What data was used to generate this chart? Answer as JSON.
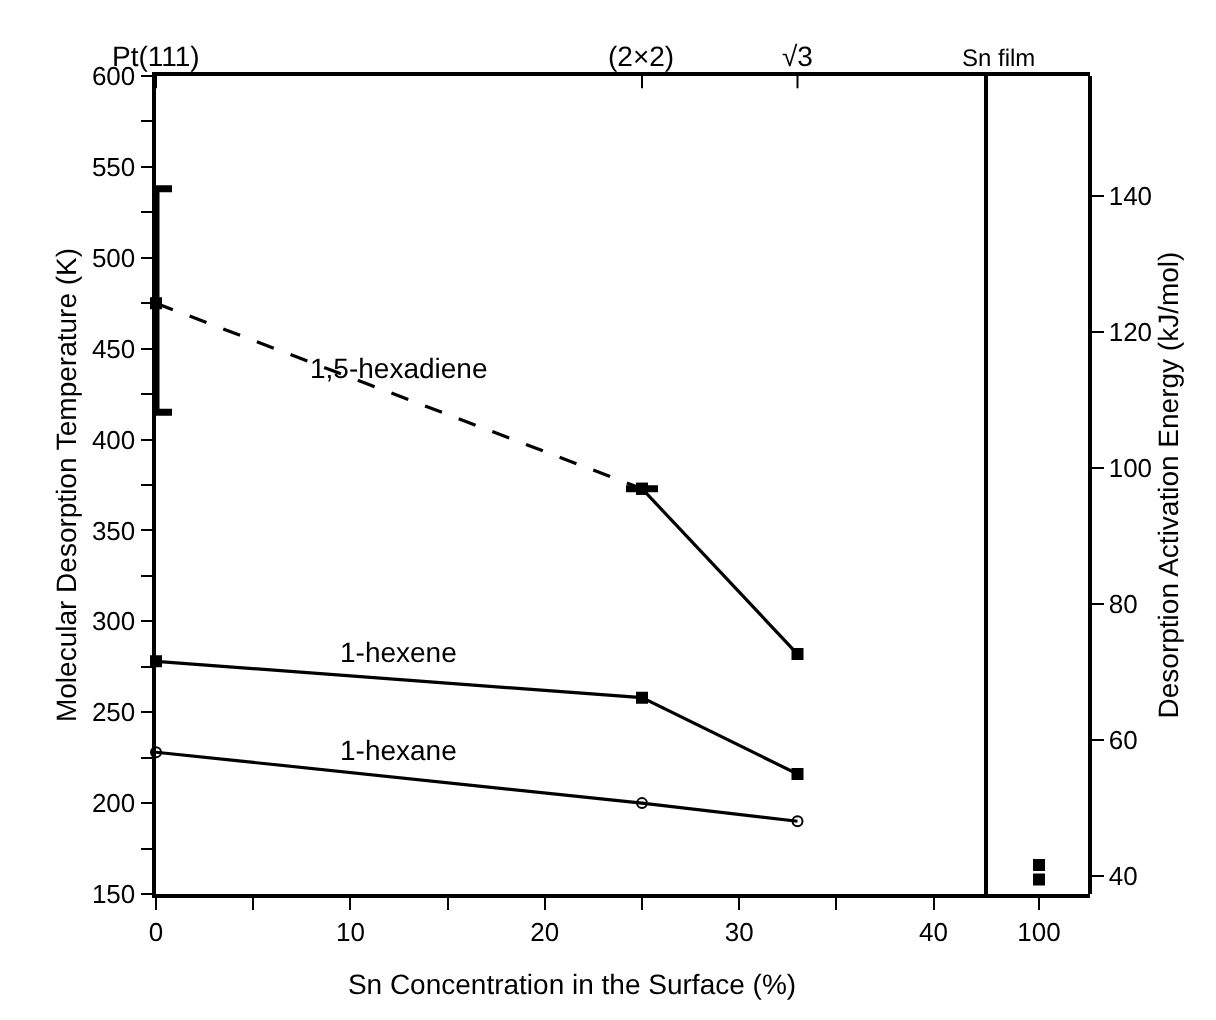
{
  "chart_data": [
    {
      "type": "line",
      "xlabel": "Sn Concentration in the Surface (%)",
      "ylabel": "Molecular Desorption Temperature (K)",
      "xlim": [
        0,
        42.8
      ],
      "xticks": [
        0,
        {
          "value": 5,
          "label": null
        },
        10,
        {
          "value": 15,
          "label": null
        },
        20,
        {
          "value": 25,
          "label": null
        },
        30,
        {
          "value": 35,
          "label": null
        },
        40
      ],
      "annotations": [
        {
          "text": "Pt(111)",
          "x": 0
        },
        {
          "text": "(2×2)",
          "x": 25
        },
        {
          "text": "√3",
          "x": 33
        }
      ],
      "ylim": [
        150,
        600
      ],
      "yticks": [
        150,
        {
          "value": 175,
          "label": null
        },
        200,
        {
          "value": 225,
          "label": null
        },
        250,
        {
          "value": 275,
          "label": null
        },
        300,
        {
          "value": 325,
          "label": null
        },
        350,
        {
          "value": 375,
          "label": null
        },
        400,
        {
          "value": 425,
          "label": null
        },
        450,
        {
          "value": 475,
          "label": null
        },
        500,
        {
          "value": 525,
          "label": null
        },
        550,
        {
          "value": 575,
          "label": null
        },
        600
      ],
      "y2label": "Desorption Activation Energy (kJ/mol)",
      "y2lim": [
        37.4,
        157.6
      ],
      "y2ticks": [
        40,
        60,
        80,
        100,
        120,
        140
      ],
      "legend": false,
      "series": [
        {
          "name": "1,5-hexadiene",
          "color": "#000000",
          "x": [
            0,
            25
          ],
          "values": [
            475,
            373
          ],
          "line_style": "dashed",
          "marker": "square",
          "errors": [
            [
              415,
              538
            ],
            null
          ]
        },
        {
          "color": "#000000",
          "x": [
            25,
            33
          ],
          "values": [
            373,
            282
          ],
          "line_style": "solid",
          "marker": "square"
        },
        {
          "name": "1-hexene",
          "color": "#000000",
          "x": [
            0,
            25,
            33
          ],
          "values": [
            278,
            258,
            216
          ],
          "line_style": "solid",
          "marker": "square"
        },
        {
          "name": "1-hexane",
          "color": "#000000",
          "x": [
            0,
            25,
            33
          ],
          "values": [
            228,
            200,
            190
          ],
          "line_style": "solid",
          "marker": "circle"
        }
      ]
    },
    {
      "type": "scatter",
      "categories": [
        "100"
      ],
      "annotations": [
        "Sn film"
      ],
      "ylim": [
        150,
        600
      ],
      "tick_labels": "x",
      "legend": false,
      "series": [
        {
          "color": "#000000",
          "x": [
            "100"
          ],
          "values": [
            158
          ],
          "marker": "square"
        },
        {
          "color": "#000000",
          "x": [
            "100"
          ],
          "values": [
            166
          ],
          "marker": "square"
        }
      ]
    }
  ]
}
